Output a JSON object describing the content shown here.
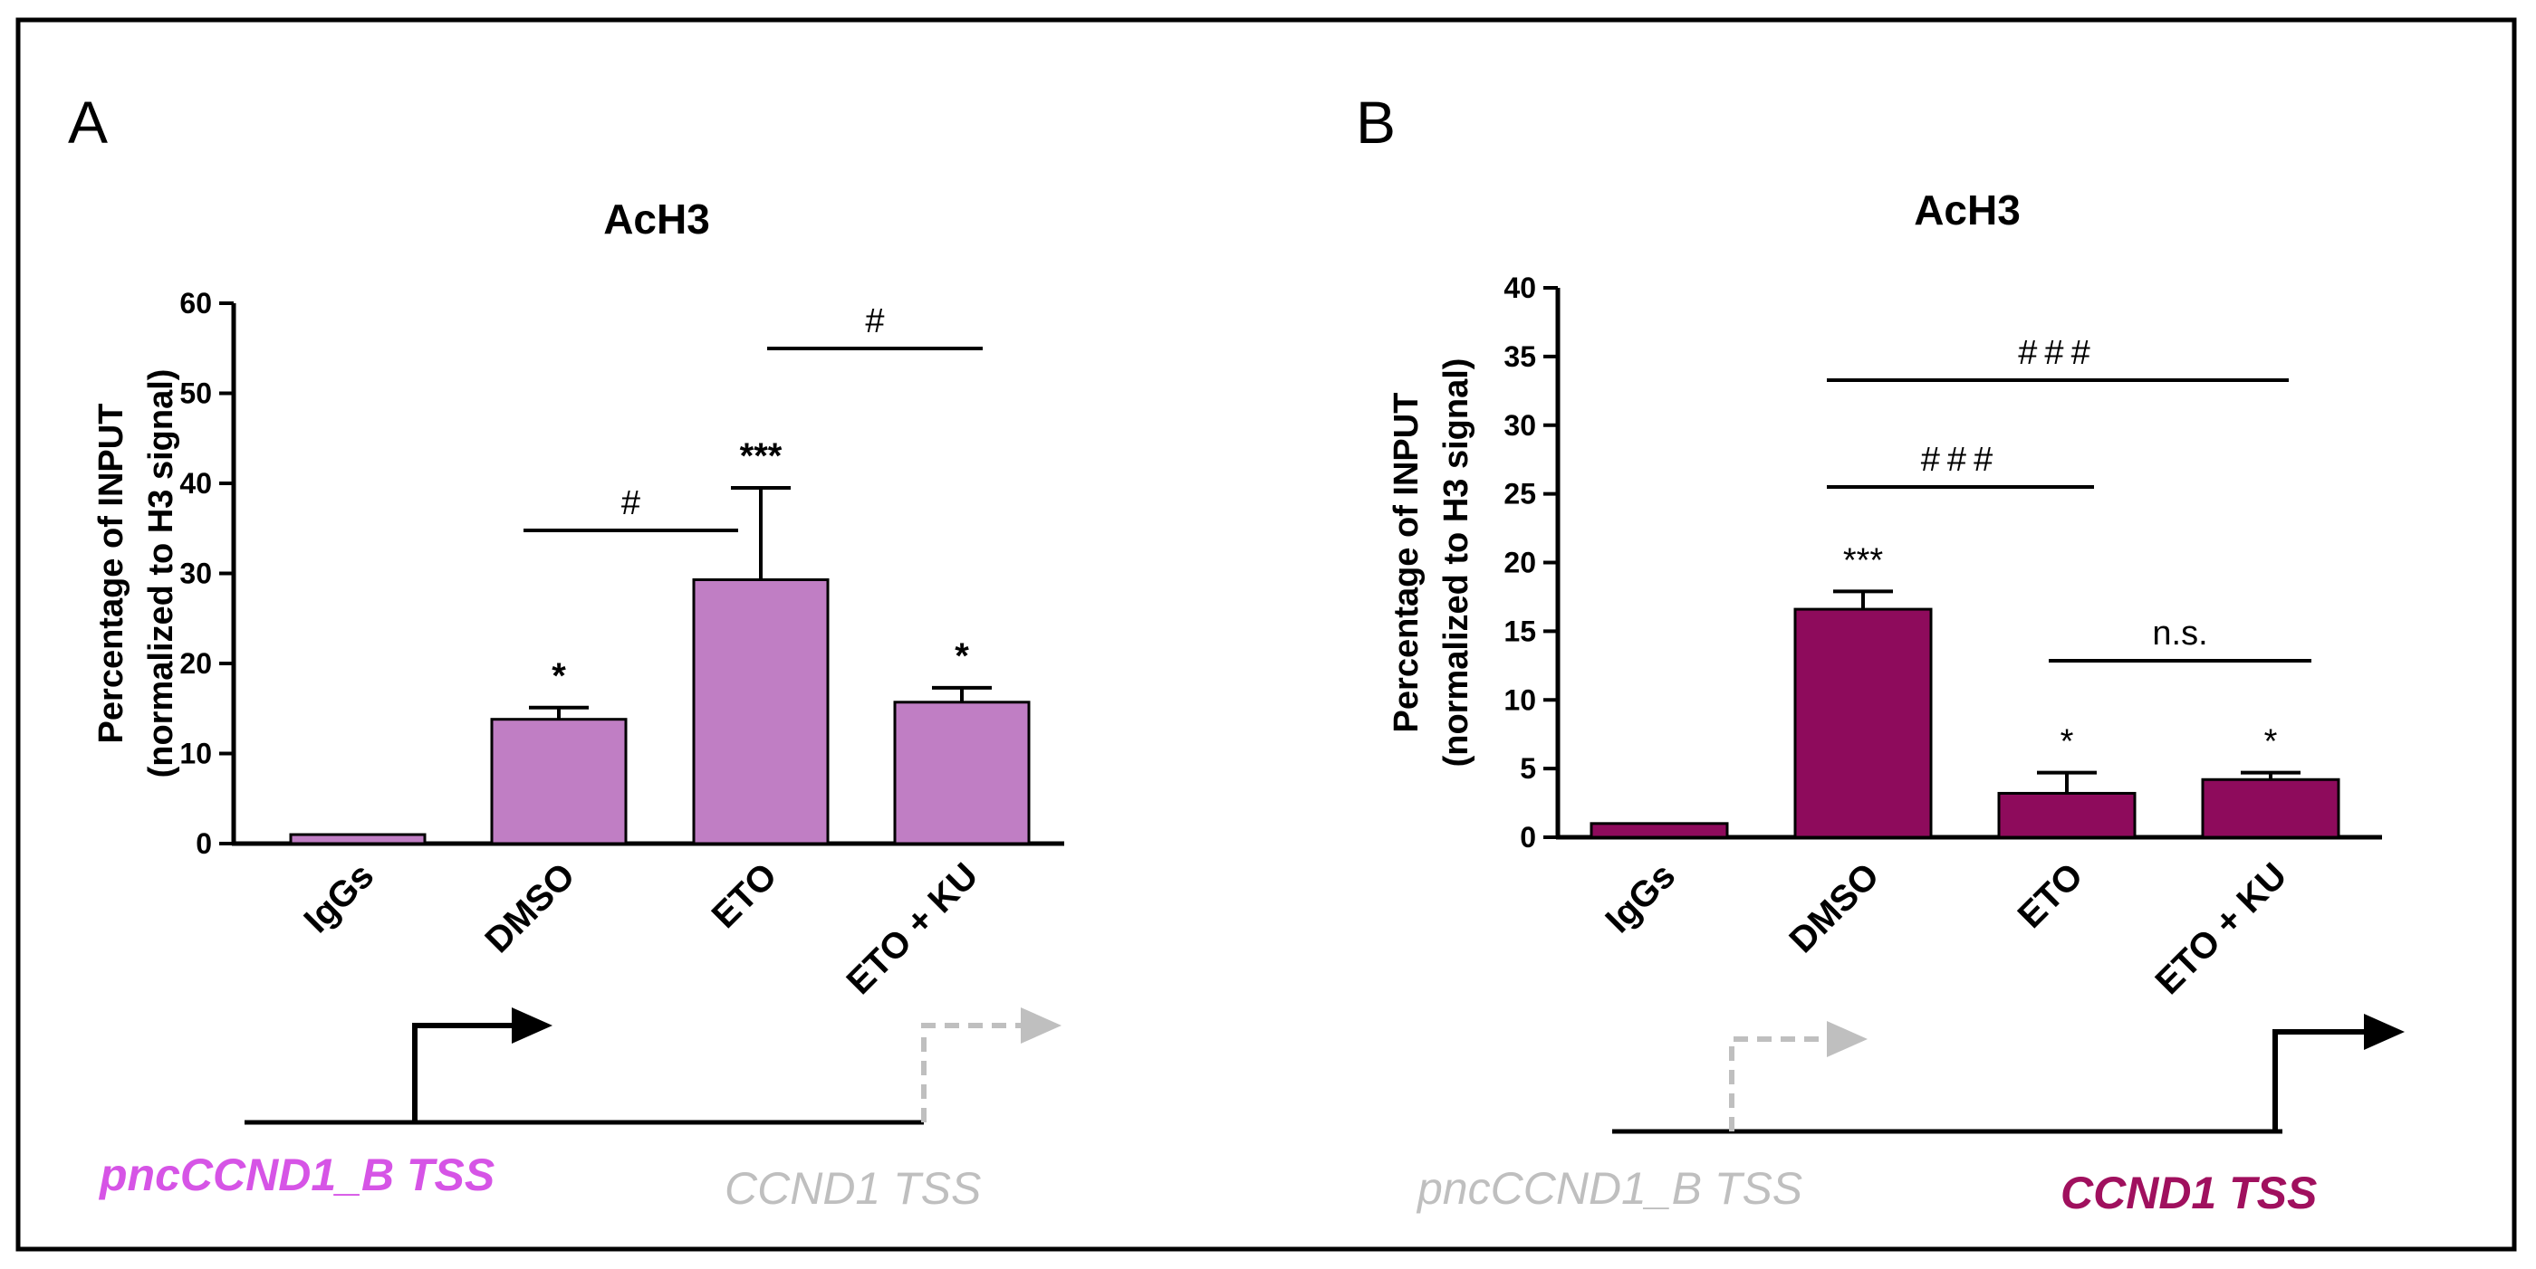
{
  "colors": {
    "panel_a_bar": "#c07ec4",
    "panel_b_bar": "#8e0b5c",
    "tss_a_active": "#d654e6",
    "tss_b_active": "#a0105e",
    "inactive": "#bfbfbf",
    "frame": "#000000"
  },
  "chart_data": [
    {
      "panel": "A",
      "type": "bar",
      "title": "AcH3",
      "ylabel_line1": "Percentage of INPUT",
      "ylabel_line2": "(normalized to H3 signal)",
      "categories": [
        "IgGs",
        "DMSO",
        "ETO",
        "ETO + KU"
      ],
      "values": [
        1,
        13.8,
        29.3,
        15.7
      ],
      "errors": [
        0,
        1.3,
        10.2,
        1.6
      ],
      "ylim": [
        0,
        60
      ],
      "yticks": [
        "0",
        "10",
        "20",
        "30",
        "40",
        "50",
        "60"
      ],
      "sig_labels": [
        "",
        "*",
        "***",
        "*"
      ],
      "brackets": [
        {
          "from": 1,
          "to": 2,
          "label": "#"
        },
        {
          "from": 2,
          "to": 3,
          "label": "#"
        }
      ],
      "tss": {
        "left_label": "pncCCND1_B TSS",
        "right_label": "CCND1 TSS",
        "active": "left"
      }
    },
    {
      "panel": "B",
      "type": "bar",
      "title": "AcH3",
      "ylabel_line1": "Percentage of INPUT",
      "ylabel_line2": "(normalized to H3 signal)",
      "categories": [
        "IgGs",
        "DMSO",
        "ETO",
        "ETO + KU"
      ],
      "values": [
        1,
        16.6,
        3.2,
        4.2
      ],
      "errors": [
        0,
        1.3,
        1.5,
        0.5
      ],
      "ylim": [
        0,
        40
      ],
      "yticks": [
        "0",
        "5",
        "10",
        "15",
        "20",
        "25",
        "30",
        "35",
        "40"
      ],
      "sig_labels": [
        "",
        "***",
        "*",
        "*"
      ],
      "brackets": [
        {
          "from": 1,
          "to": 3,
          "label": "###"
        },
        {
          "from": 1,
          "to": 2,
          "label": "###"
        },
        {
          "from": 2,
          "to": 3,
          "label": "n.s."
        }
      ],
      "tss": {
        "left_label": "pncCCND1_B TSS",
        "right_label": "CCND1 TSS",
        "active": "right"
      }
    }
  ]
}
